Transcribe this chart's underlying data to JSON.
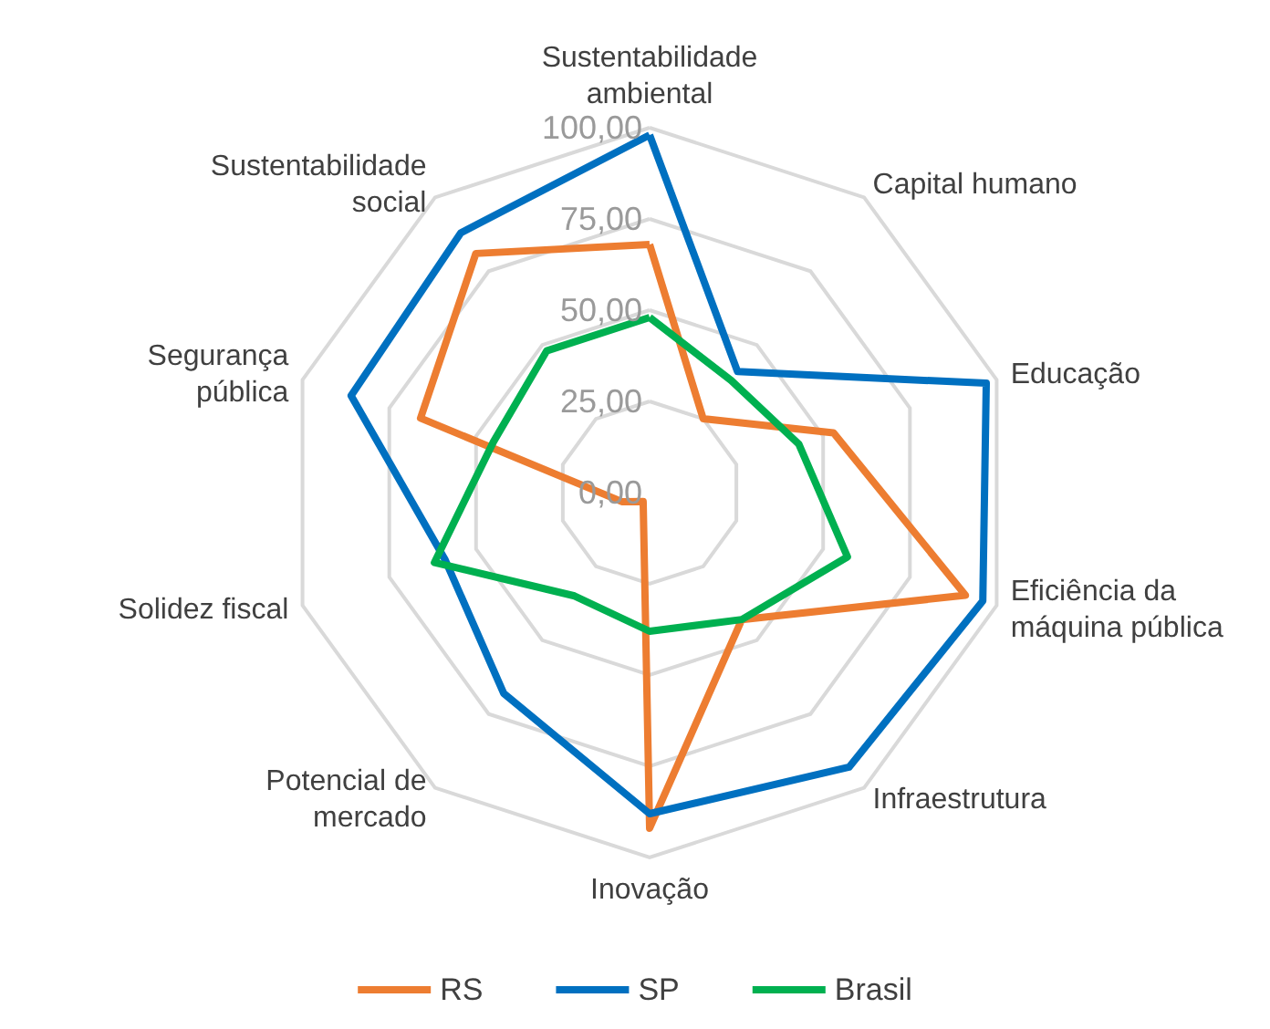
{
  "chart_data": {
    "type": "radar",
    "categories": [
      "Sustentabilidade ambiental",
      "Capital humano",
      "Educação",
      "Eficiência da máquina pública",
      "Infraestrutura",
      "Inovação",
      "Potencial de mercado",
      "Solidez fiscal",
      "Segurança pública",
      "Sustentabilidade social"
    ],
    "series": [
      {
        "name": "RS",
        "color": "#ed7d31",
        "values": [
          68,
          25,
          53,
          91,
          43,
          92,
          3,
          8,
          66,
          81
        ]
      },
      {
        "name": "SP",
        "color": "#0070c0",
        "values": [
          98,
          41,
          97,
          96,
          93,
          88,
          68,
          59,
          86,
          88
        ]
      },
      {
        "name": "Brasil",
        "color": "#00b050",
        "values": [
          48,
          38,
          43,
          57,
          43,
          38,
          35,
          62,
          45,
          48
        ]
      }
    ],
    "ylim": [
      0,
      100
    ],
    "yticks": [
      {
        "value": 0,
        "label": "0,00"
      },
      {
        "value": 25,
        "label": "25,00"
      },
      {
        "value": 50,
        "label": "50,00"
      },
      {
        "value": 75,
        "label": "75,00"
      },
      {
        "value": 100,
        "label": "100,00"
      }
    ],
    "grid": true,
    "legend": "bottom",
    "marker": "none",
    "line_style": "solid"
  }
}
